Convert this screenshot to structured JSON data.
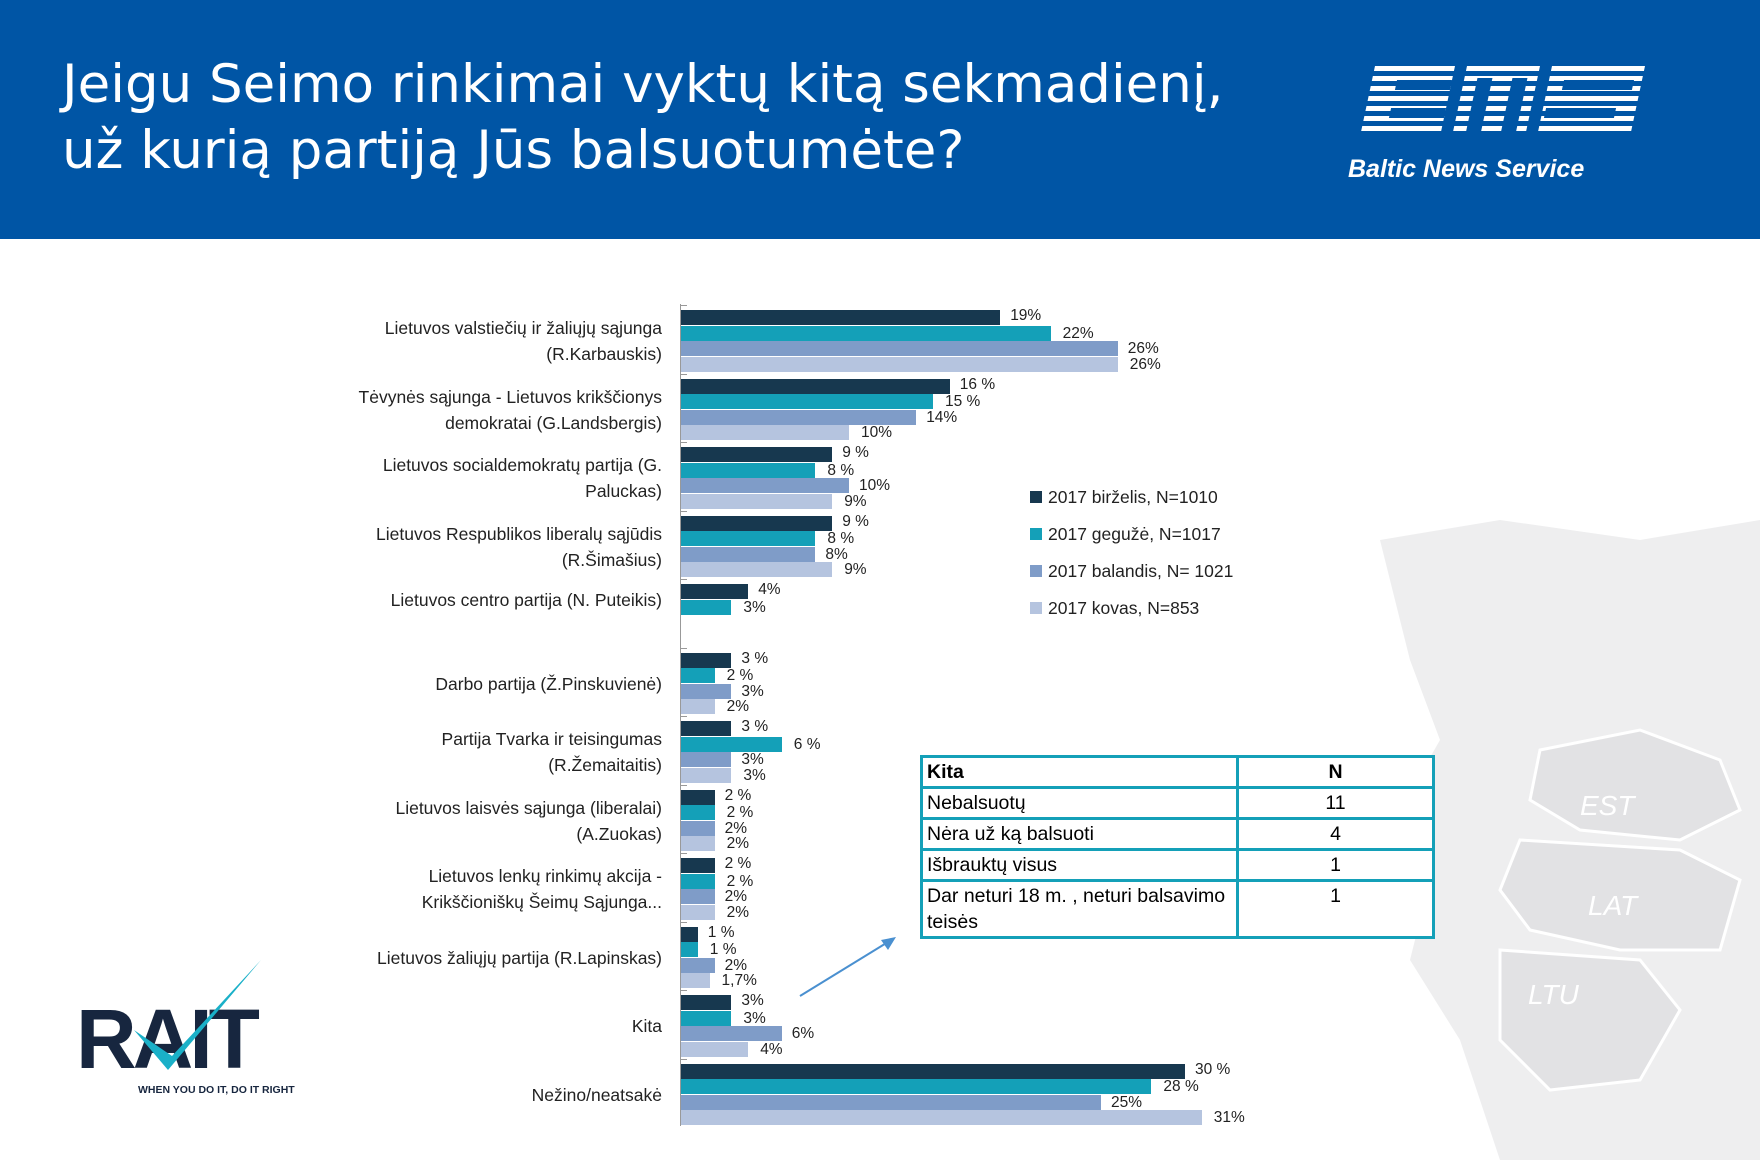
{
  "header": {
    "title_line1": "Jeigu Seimo rinkimai vyktų kitą sekmadienį,",
    "title_line2": "už kurią partiją Jūs balsuotumėte?",
    "brand": "Baltic News Service",
    "brand_logo": "BNS"
  },
  "colors": {
    "header": "#0055a5",
    "series": [
      "#17384f",
      "#14a0b8",
      "#7f9cc8",
      "#b5c4df"
    ],
    "table_border": "#14a0b8"
  },
  "chart_data": {
    "type": "bar",
    "orientation": "horizontal",
    "unit": "%",
    "categories": [
      [
        "Lietuvos valstiečių ir žaliųjų sąjunga",
        "(R.Karbauskis)"
      ],
      [
        "Tėvynės sąjunga - Lietuvos krikščionys",
        "demokratai (G.Landsbergis)"
      ],
      [
        "Lietuvos socialdemokratų partija (G.",
        "Paluckas)"
      ],
      [
        "Lietuvos Respublikos liberalų sąjūdis",
        "(R.Šimašius)"
      ],
      [
        "Lietuvos centro partija (N. Puteikis)"
      ],
      [
        "Darbo partija (Ž.Pinskuvienė)"
      ],
      [
        "Partija Tvarka ir teisingumas",
        "(R.Žemaitaitis)"
      ],
      [
        "Lietuvos laisvės sąjunga (liberalai)",
        "(A.Zuokas)"
      ],
      [
        "Lietuvos lenkų rinkimų akcija -",
        "Krikščioniškų Šeimų Sąjunga..."
      ],
      [
        "Lietuvos žaliųjų partija (R.Lapinskas)"
      ],
      [
        "Kita"
      ],
      [
        "Nežino/neatsakė"
      ]
    ],
    "series": [
      {
        "name": "2017 birželis, N=1010",
        "values": [
          19,
          16,
          9,
          9,
          4,
          3,
          3,
          2,
          2,
          1,
          3,
          30
        ],
        "labels": [
          "19%",
          "16 %",
          "9 %",
          "9 %",
          "4%",
          "3 %",
          "3 %",
          "2 %",
          "2 %",
          "1 %",
          "3%",
          "30 %"
        ]
      },
      {
        "name": "2017 gegužė, N=1017",
        "values": [
          22,
          15,
          8,
          8,
          3,
          2,
          6,
          2,
          2,
          1,
          3,
          28
        ],
        "labels": [
          "22%",
          "15 %",
          "8 %",
          "8 %",
          "3%",
          "2 %",
          "6 %",
          "2 %",
          "2 %",
          "1 %",
          "3%",
          "28 %"
        ]
      },
      {
        "name": "2017 balandis, N= 1021",
        "values": [
          26,
          14,
          10,
          8,
          null,
          3,
          3,
          2,
          2,
          2,
          6,
          25
        ],
        "labels": [
          "26%",
          "14%",
          "10%",
          "8%",
          null,
          "3%",
          "3%",
          "2%",
          "2%",
          "2%",
          "6%",
          "25%"
        ]
      },
      {
        "name": "2017 kovas, N=853",
        "values": [
          26,
          10,
          9,
          9,
          null,
          2,
          3,
          2,
          2,
          1.7,
          4,
          31
        ],
        "labels": [
          "26%",
          "10%",
          "9%",
          "9%",
          null,
          "2%",
          "3%",
          "2%",
          "2%",
          "1,7%",
          "4%",
          "31%"
        ]
      }
    ],
    "legend_position": "right",
    "grid": false,
    "xlim": [
      0,
      31
    ]
  },
  "kita_table": {
    "headers": [
      "Kita",
      "N"
    ],
    "rows": [
      [
        "Nebalsuotų",
        "11"
      ],
      [
        "Nėra už ką balsuoti",
        "4"
      ],
      [
        "Išbrauktų visus",
        "1"
      ],
      [
        "Dar neturi 18 m. , neturi balsavimo teisės",
        "1"
      ]
    ]
  },
  "map_labels": [
    "EST",
    "LAT",
    "LTU"
  ],
  "rait": {
    "logo": "RAIT",
    "tagline": "WHEN YOU DO IT, DO IT RIGHT"
  }
}
